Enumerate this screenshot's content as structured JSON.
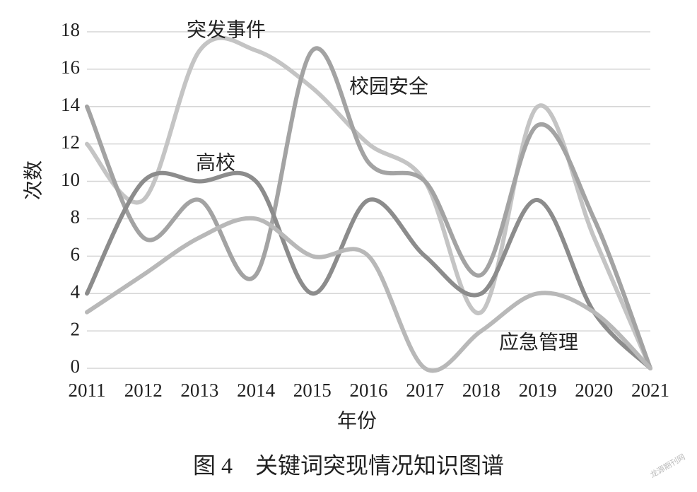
{
  "chart_data": {
    "type": "line",
    "x_label": "年份",
    "y_label": "次数",
    "caption": "图 4　关键词突现情况知识图谱",
    "watermark": "龙源期刊网",
    "categories": [
      "2011",
      "2012",
      "2013",
      "2014",
      "2015",
      "2016",
      "2017",
      "2018",
      "2019",
      "2020",
      "2021"
    ],
    "series": [
      {
        "name": "突发事件",
        "color": "#c4c4c4",
        "values": [
          12,
          9,
          17,
          17,
          15,
          12,
          10,
          3,
          14,
          7,
          0
        ]
      },
      {
        "name": "校园安全",
        "color": "#a3a3a3",
        "values": [
          14,
          7,
          9,
          5,
          17,
          11,
          10,
          5,
          13,
          8,
          0
        ]
      },
      {
        "name": "高校",
        "color": "#8c8c8c",
        "values": [
          4,
          10,
          10,
          10,
          4,
          9,
          6,
          4,
          9,
          3,
          0
        ]
      },
      {
        "name": "应急管理",
        "color": "#b8b8b8",
        "values": [
          3,
          5,
          7,
          8,
          6,
          6,
          0,
          2,
          4,
          3,
          0
        ]
      }
    ],
    "ylim": [
      0,
      18
    ],
    "yticks": [
      0,
      2,
      4,
      6,
      8,
      10,
      12,
      14,
      16,
      18
    ],
    "grid": true
  }
}
